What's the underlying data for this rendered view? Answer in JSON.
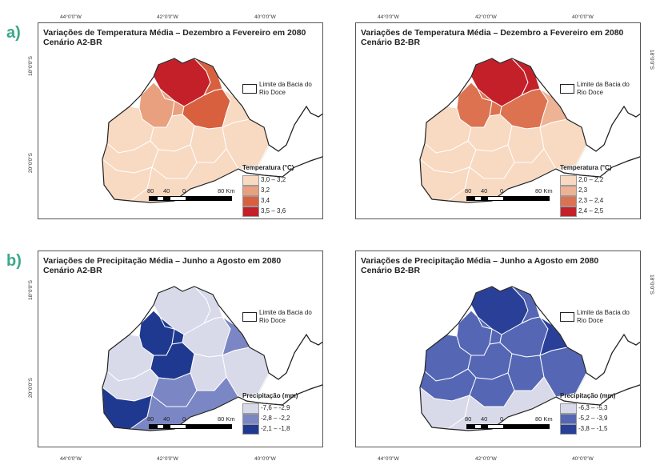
{
  "figure": {
    "section_a_label": "a)",
    "section_b_label": "b)",
    "lon_ticks": [
      "44°0'0\"W",
      "42°0'0\"W",
      "40°0'0\"W"
    ],
    "lat_ticks": [
      "18°0'0\"S",
      "20°0'0\"S"
    ]
  },
  "panels": [
    {
      "id": "temp-a2",
      "title_line1": "Variações de Temperatura Média – Dezembro a Fevereiro em 2080",
      "title_line2": "Cenário A2-BR",
      "boundary_label": "Limite da Bacia do Rio Doce",
      "legend_title": "Temperatura (°C)",
      "classes": [
        {
          "label": "3,0 – 3,2",
          "color": "#f8d9c2"
        },
        {
          "label": "3,2",
          "color": "#e9a07e"
        },
        {
          "label": "3,4",
          "color": "#d8603f"
        },
        {
          "label": "3,5 – 3,6",
          "color": "#c4202a"
        }
      ],
      "scale_labels": [
        "80",
        "40",
        "0",
        "80 Km"
      ],
      "region_classes": [
        3,
        2,
        1,
        1,
        2,
        0,
        0,
        0,
        0,
        0,
        0,
        0,
        0,
        0
      ]
    },
    {
      "id": "temp-b2",
      "title_line1": "Variações de Temperatura Média – Dezembro a Fevereiro em 2080",
      "title_line2": "Cenário B2-BR",
      "boundary_label": "Limite da Bacia do Rio Doce",
      "legend_title": "Temperatura (°C)",
      "classes": [
        {
          "label": "2,0 – 2,2",
          "color": "#f8d9c2"
        },
        {
          "label": "2,3",
          "color": "#eeb295"
        },
        {
          "label": "2,3 – 2,4",
          "color": "#dc7250"
        },
        {
          "label": "2,4 – 2,5",
          "color": "#c4202a"
        }
      ],
      "scale_labels": [
        "80",
        "40",
        "0",
        "80 Km"
      ],
      "region_classes": [
        3,
        3,
        2,
        2,
        2,
        1,
        0,
        0,
        0,
        0,
        0,
        0,
        0,
        0
      ]
    },
    {
      "id": "precip-a2",
      "title_line1": "Variações de Precipitação Média – Junho a Agosto em 2080",
      "title_line2": "Cenário A2-BR",
      "boundary_label": "Limite da Bacia do Rio Doce",
      "legend_title": "Precipitação (mm)",
      "classes": [
        {
          "label": "-7,6 – -2,9",
          "color": "#d8daea"
        },
        {
          "label": "-2,8 – -2,2",
          "color": "#7b86c4"
        },
        {
          "label": "-2,1 – -1,8",
          "color": "#1f3990"
        }
      ],
      "scale_labels": [
        "80",
        "40",
        "0",
        "80 Km"
      ],
      "region_classes": [
        0,
        0,
        2,
        2,
        0,
        1,
        0,
        2,
        0,
        0,
        0,
        1,
        2,
        1
      ]
    },
    {
      "id": "precip-b2",
      "title_line1": "Variações de Precipitação Média – Junho a Agosto em 2080",
      "title_line2": "Cenário B2-BR",
      "boundary_label": "Limite da Bacia do Rio Doce",
      "legend_title": "Precipitação (mm)",
      "classes": [
        {
          "label": "-6,3 – -5,3",
          "color": "#d8daea"
        },
        {
          "label": "-5,2 – -3,9",
          "color": "#5466b4"
        },
        {
          "label": "-3,8 – -1,5",
          "color": "#2a3f98"
        }
      ],
      "scale_labels": [
        "80",
        "40",
        "0",
        "80 Km"
      ],
      "region_classes": [
        2,
        1,
        1,
        1,
        1,
        2,
        1,
        1,
        1,
        1,
        1,
        1,
        0,
        0
      ]
    }
  ]
}
